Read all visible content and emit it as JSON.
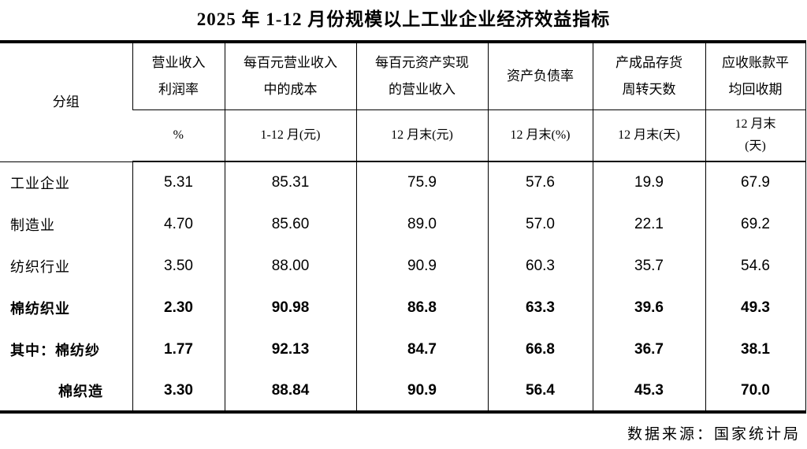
{
  "title": "2025 年 1-12 月份规模以上工业企业经济效益指标",
  "source_note": "数据来源：国家统计局",
  "colors": {
    "text": "#000000",
    "border": "#000000",
    "background": "#ffffff"
  },
  "table": {
    "group_header": "分组",
    "columns": [
      {
        "title": "营业收入\n利润率",
        "unit": "%"
      },
      {
        "title": "每百元营业收入\n中的成本",
        "unit": "1-12 月(元)"
      },
      {
        "title": "每百元资产实现\n的营业收入",
        "unit": "12 月末(元)"
      },
      {
        "title": "资产负债率",
        "unit": "12 月末(%)"
      },
      {
        "title": "产成品存货\n周转天数",
        "unit": "12 月末(天)"
      },
      {
        "title": "应收账款平\n均回收期",
        "unit": "12 月末\n(天)"
      }
    ],
    "rows": [
      {
        "label": "工业企业",
        "values": [
          "5.31",
          "85.31",
          "75.9",
          "57.6",
          "19.9",
          "67.9"
        ]
      },
      {
        "label": "制造业",
        "values": [
          "4.70",
          "85.60",
          "89.0",
          "57.0",
          "22.1",
          "69.2"
        ]
      },
      {
        "label": "纺织行业",
        "values": [
          "3.50",
          "88.00",
          "90.9",
          "60.3",
          "35.7",
          "54.6"
        ]
      },
      {
        "label": "棉纺织业",
        "values": [
          "2.30",
          "90.98",
          "86.8",
          "63.3",
          "39.6",
          "49.3"
        ]
      },
      {
        "label": "其中：棉纺纱",
        "values": [
          "1.77",
          "92.13",
          "84.7",
          "66.8",
          "36.7",
          "38.1"
        ]
      },
      {
        "label": "棉织造",
        "values": [
          "3.30",
          "88.84",
          "90.9",
          "56.4",
          "45.3",
          "70.0"
        ]
      }
    ]
  },
  "chart_data": {
    "type": "table",
    "title": "2025 年 1-12 月份规模以上工业企业经济效益指标",
    "columns": [
      "分组",
      "营业收入利润率 (%)",
      "每百元营业收入中的成本 1-12 月(元)",
      "每百元资产实现的营业收入 12 月末(元)",
      "资产负债率 12 月末(%)",
      "产成品存货周转天数 12 月末(天)",
      "应收账款平均回收期 12 月末(天)"
    ],
    "rows": [
      [
        "工业企业",
        5.31,
        85.31,
        75.9,
        57.6,
        19.9,
        67.9
      ],
      [
        "制造业",
        4.7,
        85.6,
        89.0,
        57.0,
        22.1,
        69.2
      ],
      [
        "纺织行业",
        3.5,
        88.0,
        90.9,
        60.3,
        35.7,
        54.6
      ],
      [
        "棉纺织业",
        2.3,
        90.98,
        86.8,
        63.3,
        39.6,
        49.3
      ],
      [
        "其中：棉纺纱",
        1.77,
        92.13,
        84.7,
        66.8,
        36.7,
        38.1
      ],
      [
        "棉织造",
        3.3,
        88.84,
        90.9,
        56.4,
        45.3,
        70.0
      ]
    ],
    "source": "数据来源：国家统计局"
  }
}
